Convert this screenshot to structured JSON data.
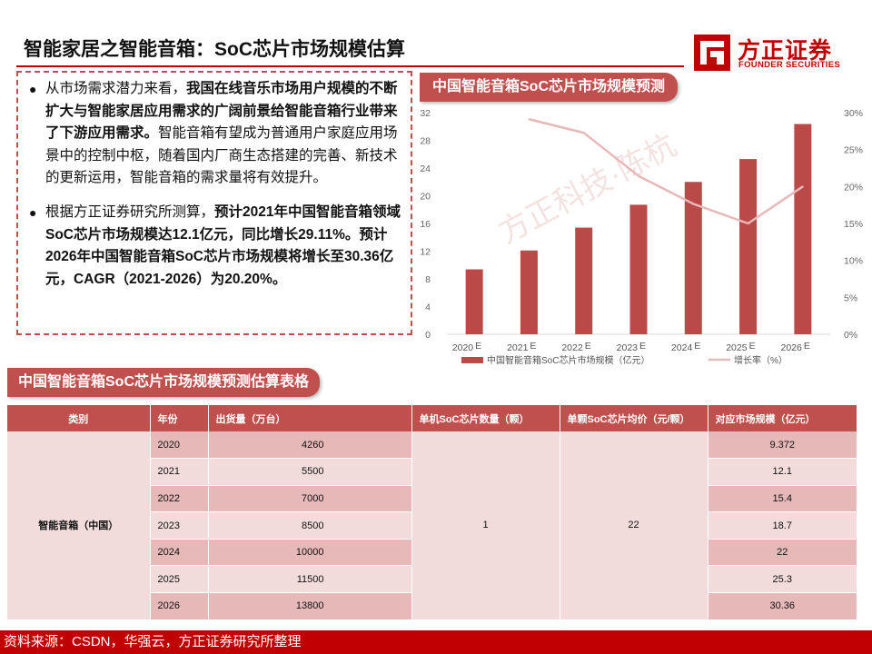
{
  "header": {
    "title": "智能家居之智能音箱：SoC芯片市场规模估算",
    "logo_cn": "方正证券",
    "logo_en": "FOUNDER SECURITIES",
    "logo_icon": "founder-logo-icon"
  },
  "text": {
    "b1_a": "从市场需求潜力来看，",
    "b1_b": "我国在线音乐市场用户规模的不断扩大与智能家居应用需求的广阔前景给智能音箱行业带来了下游应用需求。",
    "b1_c": "智能音箱有望成为普通用户家庭应用场景中的控制中枢，随着国内厂商生态搭建的完善、新技术的更新运用，智能音箱的需求量将有效提升。",
    "b2_a": "根据方正证券研究所测算，",
    "b2_b": "预计2021年中国智能音箱领域SoC芯片市场规模达12.1亿元，同比增长29.11%。预计2026年中国智能音箱SoC芯片市场规模将增长至30.36亿元，CAGR（2021-2026）为20.20%。"
  },
  "chart_tag": "中国智能音箱SoC芯片市场规模预测",
  "watermark": "方正科技·陈杭",
  "chart_data": {
    "type": "bar",
    "title": "中国智能音箱SoC芯片市场规模预测",
    "categories": [
      "2020",
      "2021",
      "2022",
      "2023",
      "2024",
      "2025",
      "2026"
    ],
    "category_suffix": "E",
    "series": [
      {
        "name": "中国智能音箱SoC芯片市场规模（亿元）",
        "type": "bar",
        "axis": "left",
        "color": "#b94a48",
        "values": [
          9.372,
          12.1,
          15.4,
          18.7,
          22,
          25.3,
          30.36
        ]
      },
      {
        "name": "增长率（%）",
        "type": "line",
        "axis": "right",
        "color": "#e6b9b8",
        "values": [
          null,
          29.11,
          27.27,
          21.43,
          17.65,
          15.0,
          20.0
        ]
      }
    ],
    "y_left": {
      "ylim": [
        0,
        32
      ],
      "ticks": [
        "0",
        "4",
        "8",
        "12",
        "16",
        "20",
        "24",
        "28",
        "32"
      ]
    },
    "y_right": {
      "ylim": [
        0,
        30
      ],
      "ticks": [
        "0%",
        "5%",
        "10%",
        "15%",
        "20%",
        "25%",
        "30%"
      ]
    },
    "grid": false,
    "legend": "bottom"
  },
  "table": {
    "title": "中国智能音箱SoC芯片市场规模预测估算表格",
    "headers": [
      "类别",
      "年份",
      "出货量（万台）",
      "单机SoC芯片数量（颗）",
      "单颗SoC芯片均价（元/颗）",
      "对应市场规模（亿元）"
    ],
    "category": "智能音箱（中国）",
    "chips_per_unit": "1",
    "avg_price": "22",
    "rows": [
      {
        "year": "2020",
        "shipments": "4260",
        "market": "9.372"
      },
      {
        "year": "2021",
        "shipments": "5500",
        "market": "12.1"
      },
      {
        "year": "2022",
        "shipments": "7000",
        "market": "15.4"
      },
      {
        "year": "2023",
        "shipments": "8500",
        "market": "18.7"
      },
      {
        "year": "2024",
        "shipments": "10000",
        "market": "22"
      },
      {
        "year": "2025",
        "shipments": "11500",
        "market": "25.3"
      },
      {
        "year": "2026",
        "shipments": "13800",
        "market": "30.36"
      }
    ]
  },
  "source": "资料来源：CSDN，华强云，方正证券研究所整理"
}
